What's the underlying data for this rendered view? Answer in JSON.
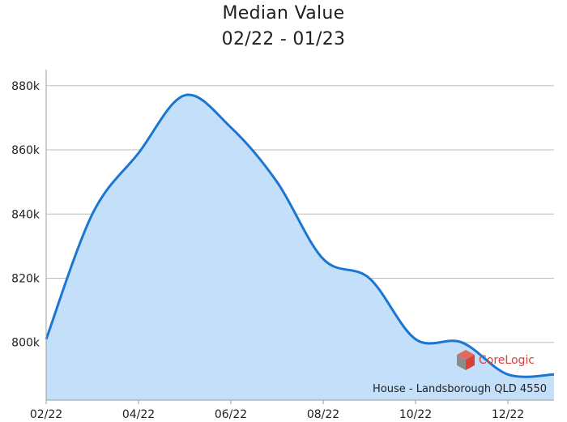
{
  "chart_data": {
    "type": "area",
    "title": "Median Value",
    "subtitle": "02/22 - 01/23",
    "xlabel": "",
    "ylabel": "",
    "x": [
      "02/22",
      "03/22",
      "04/22",
      "05/22",
      "06/22",
      "07/22",
      "08/22",
      "09/22",
      "10/22",
      "11/22",
      "12/22",
      "01/23"
    ],
    "x_tick_labels": [
      "02/22",
      "04/22",
      "06/22",
      "08/22",
      "10/22",
      "12/22"
    ],
    "y_tick_values": [
      800000,
      820000,
      840000,
      860000,
      880000
    ],
    "y_tick_labels": [
      "800k",
      "820k",
      "840k",
      "860k",
      "880k"
    ],
    "ylim": [
      782000,
      885000
    ],
    "grid": "horizontal",
    "series": [
      {
        "values": [
          801000,
          840000,
          859000,
          877000,
          867000,
          850000,
          826000,
          820000,
          801000,
          800000,
          790000,
          790000
        ]
      }
    ],
    "colors": {
      "line": "#1a76d2",
      "fill": "#c3dff9",
      "grid": "#bdbdbd",
      "axis": "#9e9e9e"
    }
  },
  "footer": {
    "caption": "House - Landsborough QLD 4550",
    "brand_name": "CoreLogic",
    "logo_icon": "corelogic-cube-icon",
    "brand_color": "#d8423a"
  }
}
